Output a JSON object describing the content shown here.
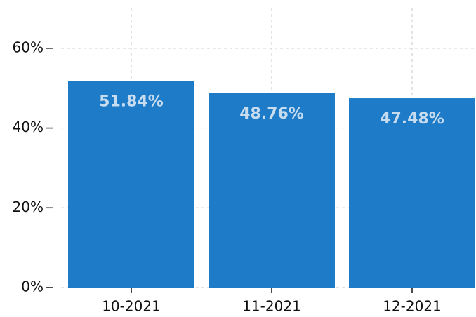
{
  "chart_data": {
    "type": "bar",
    "categories": [
      "10-2021",
      "11-2021",
      "12-2021"
    ],
    "values": [
      51.84,
      48.76,
      47.48
    ],
    "value_labels": [
      "51.84%",
      "48.76%",
      "47.48%"
    ],
    "color": "#1e7bc8",
    "ylim": [
      0,
      70
    ],
    "yticks": [
      {
        "value": 0,
        "label": "0%"
      },
      {
        "value": 20,
        "label": "20%"
      },
      {
        "value": 40,
        "label": "40%"
      },
      {
        "value": 60,
        "label": "60%"
      }
    ],
    "grid": true
  }
}
